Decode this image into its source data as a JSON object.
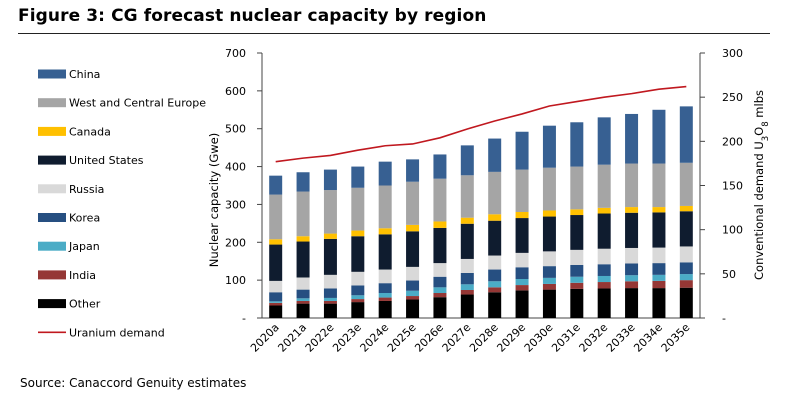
{
  "title": "Figure 3: CG forecast nuclear capacity by region",
  "source": "Source: Canaccord Genuity estimates",
  "chart_data": {
    "type": "bar",
    "stacked": true,
    "categories": [
      "2020a",
      "2021a",
      "2022e",
      "2023e",
      "2024e",
      "2025e",
      "2026e",
      "2027e",
      "2028e",
      "2029e",
      "2030e",
      "2031e",
      "2032e",
      "2033e",
      "2034e",
      "2035e"
    ],
    "ylabel": "Nuclear capacity (Gwe)",
    "ylim": [
      0,
      700
    ],
    "yticks": [
      "-",
      "100",
      "200",
      "300",
      "400",
      "500",
      "600",
      "700"
    ],
    "y2label_parts": [
      "Conventional demand U",
      "3",
      "O",
      "8",
      " mlbs"
    ],
    "y2lim": [
      0,
      300
    ],
    "y2ticks": [
      "-",
      "50",
      "100",
      "150",
      "200",
      "250",
      "300"
    ],
    "legend_position": "left",
    "series": [
      {
        "name": "Other",
        "color": "#000000",
        "values": [
          33,
          38,
          38,
          42,
          45,
          49,
          55,
          62,
          68,
          73,
          75,
          77,
          78,
          79,
          79,
          80
        ]
      },
      {
        "name": "India",
        "color": "#953735",
        "values": [
          7,
          7,
          7,
          8,
          9,
          9,
          11,
          12,
          13,
          14,
          15,
          16,
          17,
          18,
          19,
          20
        ]
      },
      {
        "name": "Japan",
        "color": "#4bacc6",
        "values": [
          4,
          7,
          8,
          10,
          12,
          14,
          15,
          15,
          16,
          16,
          16,
          16,
          16,
          16,
          16,
          16
        ]
      },
      {
        "name": "Korea",
        "color": "#264f81",
        "values": [
          24,
          23,
          25,
          26,
          26,
          27,
          28,
          30,
          31,
          31,
          31,
          31,
          31,
          31,
          31,
          31
        ]
      },
      {
        "name": "Russia",
        "color": "#d9d9d9",
        "values": [
          30,
          32,
          36,
          36,
          36,
          36,
          36,
          37,
          37,
          38,
          39,
          40,
          41,
          41,
          41,
          42
        ]
      },
      {
        "name": "United States",
        "color": "#0f1c2f",
        "values": [
          96,
          95,
          95,
          94,
          93,
          94,
          93,
          93,
          92,
          92,
          92,
          92,
          93,
          93,
          93,
          93
        ]
      },
      {
        "name": "Canada",
        "color": "#ffc000",
        "values": [
          14,
          14,
          14,
          15,
          16,
          17,
          17,
          16,
          17,
          16,
          16,
          15,
          15,
          15,
          14,
          14
        ]
      },
      {
        "name": "West and Central Europe",
        "color": "#a5a5a5",
        "values": [
          118,
          118,
          115,
          113,
          113,
          114,
          113,
          112,
          112,
          112,
          113,
          113,
          114,
          115,
          115,
          114
        ]
      },
      {
        "name": "China",
        "color": "#376092",
        "values": [
          50,
          51,
          54,
          56,
          63,
          59,
          64,
          79,
          88,
          100,
          111,
          117,
          125,
          131,
          142,
          149
        ]
      }
    ],
    "line_series": {
      "name": "Uranium demand",
      "color": "#c0181f",
      "axis": "secondary",
      "values": [
        177,
        181,
        184,
        190,
        195,
        197,
        204,
        214,
        223,
        231,
        240,
        245,
        250,
        254,
        259,
        262
      ]
    },
    "legend_order": [
      "China",
      "West and Central Europe",
      "Canada",
      "United States",
      "Russia",
      "Korea",
      "Japan",
      "India",
      "Other",
      "Uranium demand"
    ]
  }
}
